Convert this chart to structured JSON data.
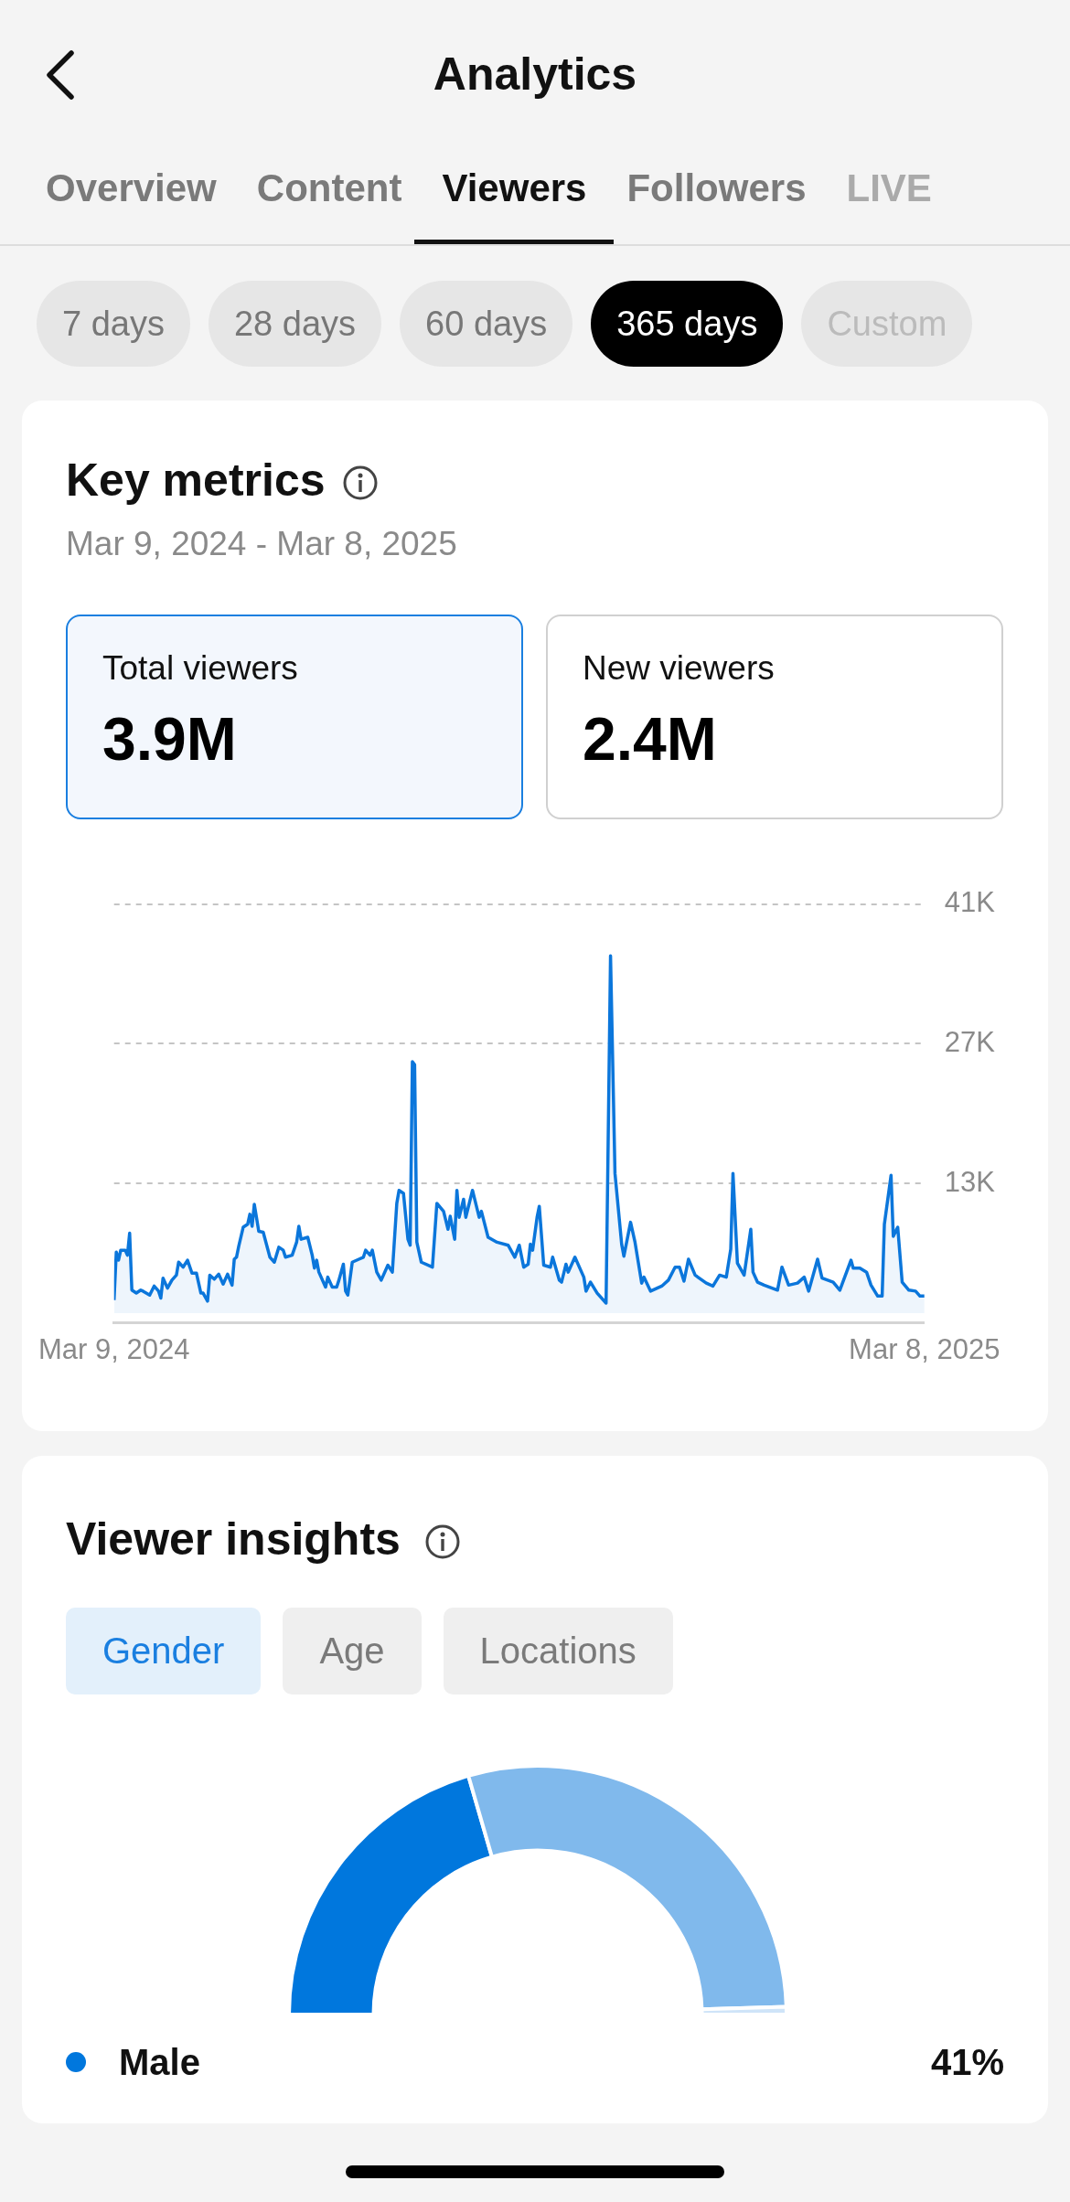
{
  "chart_data": [
    {
      "type": "other",
      "title": "Analytics",
      "annotations": [
        "Overview",
        "Content",
        "Viewers",
        "Followers",
        "LIVE",
        "7 days",
        "28 days",
        "60 days",
        "365 days",
        "Custom"
      ]
    },
    {
      "type": "area",
      "title": "Key metrics",
      "subtitle": "Mar 9, 2024 - Mar 8, 2025",
      "annotations": [
        "Total viewers",
        "3.9M",
        "New viewers",
        "2.4M"
      ],
      "color": "#0b76db",
      "x": [
        "2024-03-09",
        "2024-03-10",
        "2024-03-11",
        "2024-03-12",
        "2024-03-14",
        "2024-03-15",
        "2024-03-16",
        "2024-03-17",
        "2024-03-19",
        "2024-03-21",
        "2024-03-22",
        "2024-03-25",
        "2024-03-27",
        "2024-03-29",
        "2024-03-30",
        "2024-03-31",
        "2024-04-02",
        "2024-04-04",
        "2024-04-06",
        "2024-04-07",
        "2024-04-09",
        "2024-04-11",
        "2024-04-13",
        "2024-04-15",
        "2024-04-17",
        "2024-04-18",
        "2024-04-20",
        "2024-04-21",
        "2024-04-23",
        "2024-04-25",
        "2024-04-27",
        "2024-04-29",
        "2024-05-01",
        "2024-05-02",
        "2024-05-03",
        "2024-05-04",
        "2024-05-06",
        "2024-05-08",
        "2024-05-09",
        "2024-05-10",
        "2024-05-11",
        "2024-05-13",
        "2024-05-15",
        "2024-05-18",
        "2024-05-20",
        "2024-05-22",
        "2024-05-24",
        "2024-05-25",
        "2024-05-28",
        "2024-05-30",
        "2024-05-31",
        "2024-06-01",
        "2024-06-04",
        "2024-06-06",
        "2024-06-07",
        "2024-06-08",
        "2024-06-09",
        "2024-06-12",
        "2024-06-13",
        "2024-06-15",
        "2024-06-17",
        "2024-06-18",
        "2024-06-20",
        "2024-06-21",
        "2024-06-22",
        "2024-06-24",
        "2024-06-27",
        "2024-06-29",
        "2024-06-30",
        "2024-07-02",
        "2024-07-03",
        "2024-07-05",
        "2024-07-07",
        "2024-07-10",
        "2024-07-12",
        "2024-07-14",
        "2024-07-15",
        "2024-07-17",
        "2024-07-19",
        "2024-07-20",
        "2024-07-21",
        "2024-07-22",
        "2024-07-23",
        "2024-07-25",
        "2024-07-30",
        "2024-08-01",
        "2024-08-04",
        "2024-08-06",
        "2024-08-07",
        "2024-08-09",
        "2024-08-10",
        "2024-08-11",
        "2024-08-13",
        "2024-08-14",
        "2024-08-17",
        "2024-08-20",
        "2024-08-21",
        "2024-08-24",
        "2024-08-28",
        "2024-09-02",
        "2024-09-05",
        "2024-09-07",
        "2024-09-09",
        "2024-09-11",
        "2024-09-12",
        "2024-09-13",
        "2024-09-15",
        "2024-09-16",
        "2024-09-18",
        "2024-09-21",
        "2024-09-22",
        "2024-09-25",
        "2024-09-26",
        "2024-09-28",
        "2024-09-29",
        "2024-10-02",
        "2024-10-06",
        "2024-10-07",
        "2024-10-09",
        "2024-10-12",
        "2024-10-16",
        "2024-10-18",
        "2024-10-20",
        "2024-10-23",
        "2024-10-24",
        "2024-10-27",
        "2024-10-29",
        "2024-11-01",
        "2024-11-02",
        "2024-11-05",
        "2024-11-10",
        "2024-11-13",
        "2024-11-16",
        "2024-11-18",
        "2024-11-20",
        "2024-11-22",
        "2024-11-25",
        "2024-11-30",
        "2024-12-03",
        "2024-12-06",
        "2024-12-09",
        "2024-12-11",
        "2024-12-12",
        "2024-12-14",
        "2024-12-17",
        "2024-12-20",
        "2024-12-21",
        "2024-12-23",
        "2024-12-26",
        "2025-01-01",
        "2025-01-03",
        "2025-01-06",
        "2025-01-10",
        "2025-01-13",
        "2025-01-15",
        "2025-01-19",
        "2025-01-21",
        "2025-01-26",
        "2025-01-29",
        "2025-02-03",
        "2025-02-04",
        "2025-02-07",
        "2025-02-10",
        "2025-02-12",
        "2025-02-15",
        "2025-02-17",
        "2025-02-18",
        "2025-02-21",
        "2025-02-22",
        "2025-02-24",
        "2025-02-26",
        "2025-03-01",
        "2025-03-04",
        "2025-03-06",
        "2025-03-08"
      ],
      "values": [
        1300,
        6100,
        5300,
        6300,
        6300,
        5800,
        8000,
        2300,
        2000,
        2300,
        2200,
        1800,
        2700,
        2200,
        1500,
        3500,
        2500,
        3300,
        3800,
        5100,
        4600,
        5300,
        4000,
        4000,
        2000,
        2000,
        1200,
        3800,
        3400,
        3900,
        2900,
        3900,
        2800,
        5400,
        5600,
        6700,
        8600,
        8900,
        9900,
        8700,
        10900,
        8200,
        8100,
        5600,
        5100,
        6600,
        6300,
        5600,
        5800,
        7100,
        8700,
        7400,
        7600,
        5800,
        4500,
        5300,
        4100,
        2600,
        3600,
        2600,
        2600,
        3300,
        4900,
        2200,
        1800,
        5100,
        5400,
        5600,
        6300,
        5800,
        6300,
        4100,
        3300,
        4800,
        4100,
        11000,
        12300,
        12000,
        7400,
        6800,
        25200,
        24900,
        7100,
        5100,
        4600,
        11000,
        10200,
        8400,
        9700,
        7400,
        12300,
        9600,
        11400,
        9600,
        12300,
        9600,
        10200,
        7600,
        7100,
        6800,
        5600,
        6800,
        4600,
        4900,
        6900,
        6300,
        9600,
        10700,
        4800,
        4600,
        5600,
        3300,
        3100,
        4900,
        4100,
        5600,
        3600,
        2200,
        3100,
        2000,
        1000,
        35800,
        14000,
        6900,
        5700,
        9100,
        7100,
        3000,
        3600,
        2200,
        2700,
        3300,
        4600,
        4600,
        3200,
        5400,
        3800,
        3000,
        2700,
        3800,
        3600,
        6400,
        14000,
        5000,
        3800,
        8400,
        4100,
        3100,
        2800,
        2300,
        4600,
        2800,
        3000,
        3600,
        2200,
        5400,
        3500,
        3100,
        2300,
        5300,
        4500,
        4500,
        4100,
        2800,
        1700,
        1700,
        8900,
        13800,
        7700,
        8600,
        3100,
        2300,
        2200,
        1700,
        1700
      ],
      "xlim": [
        "2024-03-09",
        "2025-03-08"
      ],
      "xticks": [
        {
          "value": "2024-03-09",
          "label": "Mar 9, 2024"
        },
        {
          "value": "2025-03-08",
          "label": "Mar 8, 2025"
        }
      ],
      "ylim": [
        -1000,
        41000
      ],
      "yticks": [
        {
          "value": 13000,
          "label": "13K"
        },
        {
          "value": 27000,
          "label": "27K"
        },
        {
          "value": 41000,
          "label": "41K"
        }
      ],
      "grid": "y"
    },
    {
      "type": "donut",
      "title": "Viewer insights",
      "annotations": [
        "Gender",
        "Age",
        "Locations"
      ],
      "categories": [
        "Male",
        null,
        null
      ],
      "values": [
        41,
        58,
        1
      ],
      "colors": [
        "#0077dd",
        "#80b9ec",
        "#cfe4f8"
      ],
      "value_labels": [
        "41%",
        null,
        null
      ],
      "legend": "bottom"
    }
  ]
}
